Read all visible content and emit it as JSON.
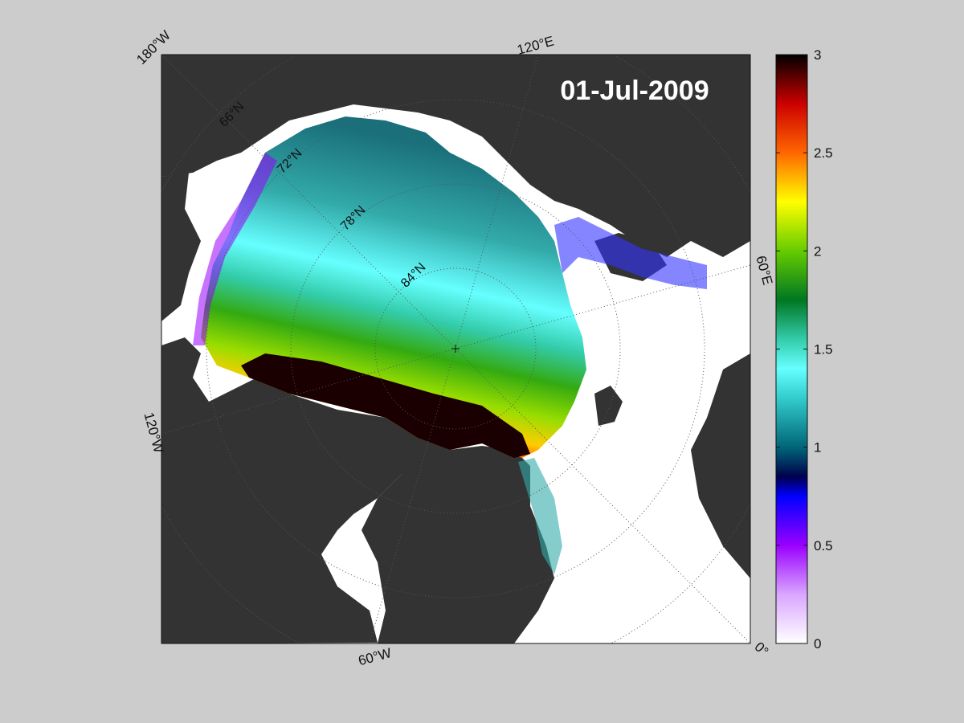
{
  "map": {
    "date_label": "01-Jul-2009",
    "longitude_labels": [
      "180°W",
      "120°E",
      "60°E",
      "0°",
      "60°W",
      "120°W"
    ],
    "latitude_labels": [
      "66°N",
      "72°N",
      "78°N",
      "84°N"
    ]
  },
  "colorbar": {
    "min": 0,
    "max": 3,
    "ticks": [
      {
        "label": "3",
        "value": 3
      },
      {
        "label": "2.5",
        "value": 2.5
      },
      {
        "label": "2",
        "value": 2
      },
      {
        "label": "1.5",
        "value": 1.5
      },
      {
        "label": "1",
        "value": 1
      },
      {
        "label": "0.5",
        "value": 0.5
      },
      {
        "label": "0",
        "value": 0
      }
    ],
    "stops": [
      {
        "value": 0,
        "color": "#ffffff"
      },
      {
        "value": 0.25,
        "color": "#d9a6ff"
      },
      {
        "value": 0.5,
        "color": "#9900ff"
      },
      {
        "value": 0.75,
        "color": "#0000ff"
      },
      {
        "value": 0.85,
        "color": "#00004d"
      },
      {
        "value": 1.0,
        "color": "#006677"
      },
      {
        "value": 1.25,
        "color": "#33cccc"
      },
      {
        "value": 1.4,
        "color": "#66ffff"
      },
      {
        "value": 1.55,
        "color": "#33ccaa"
      },
      {
        "value": 1.75,
        "color": "#007722"
      },
      {
        "value": 2.0,
        "color": "#66cc00"
      },
      {
        "value": 2.25,
        "color": "#ffff00"
      },
      {
        "value": 2.5,
        "color": "#ff6600"
      },
      {
        "value": 2.75,
        "color": "#cc0000"
      },
      {
        "value": 3.0,
        "color": "#000000"
      }
    ]
  },
  "colors": {
    "background": "#cccccc",
    "land": "#333333",
    "ocean": "#ffffff",
    "grid": "#555555"
  }
}
